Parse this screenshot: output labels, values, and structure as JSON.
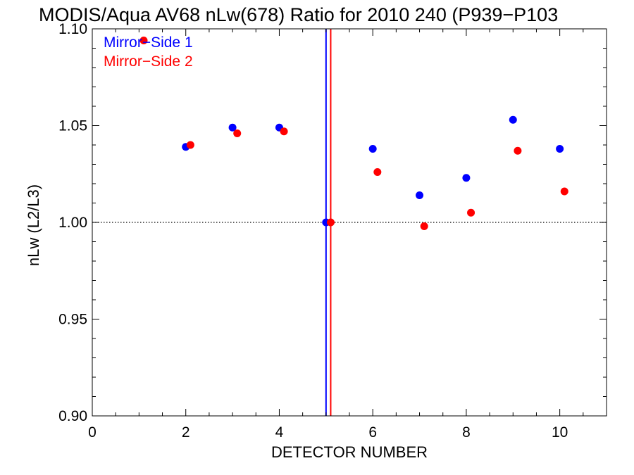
{
  "chart_data": {
    "type": "scatter",
    "title": "MODIS/Aqua AV68 nLw(678) Ratio for 2010 240 (P939−P103",
    "xlabel": "DETECTOR NUMBER",
    "ylabel": "nLw (L2/L3)",
    "xlim": [
      0,
      11
    ],
    "ylim": [
      0.9,
      1.1
    ],
    "x_ticks": [
      0,
      2,
      4,
      6,
      8,
      10
    ],
    "x_tick_labels": [
      "0",
      "2",
      "4",
      "6",
      "8",
      "10"
    ],
    "y_ticks": [
      0.9,
      0.95,
      1.0,
      1.05,
      1.1
    ],
    "y_tick_labels": [
      "0.90",
      "0.95",
      "1.00",
      "1.05",
      "1.10"
    ],
    "reference_line": 1.0,
    "legend": {
      "placement": "top-left"
    },
    "series": [
      {
        "name": "Mirror−Side 1",
        "color": "#0000ff",
        "x": [
          2,
          3,
          4,
          5,
          6,
          7,
          8,
          9,
          10
        ],
        "y": [
          1.039,
          1.049,
          1.049,
          1.0,
          1.038,
          1.014,
          1.023,
          1.053,
          1.038
        ],
        "vertical_line_x": 5.0
      },
      {
        "name": "Mirror−Side 2",
        "color": "#ff0000",
        "x": [
          1.1,
          2.1,
          3.1,
          4.1,
          5.1,
          6.1,
          7.1,
          8.1,
          9.1,
          10.1
        ],
        "y": [
          1.094,
          1.04,
          1.046,
          1.047,
          1.0,
          1.026,
          0.998,
          1.005,
          1.037,
          1.016
        ],
        "vertical_line_x": 5.1
      }
    ]
  }
}
